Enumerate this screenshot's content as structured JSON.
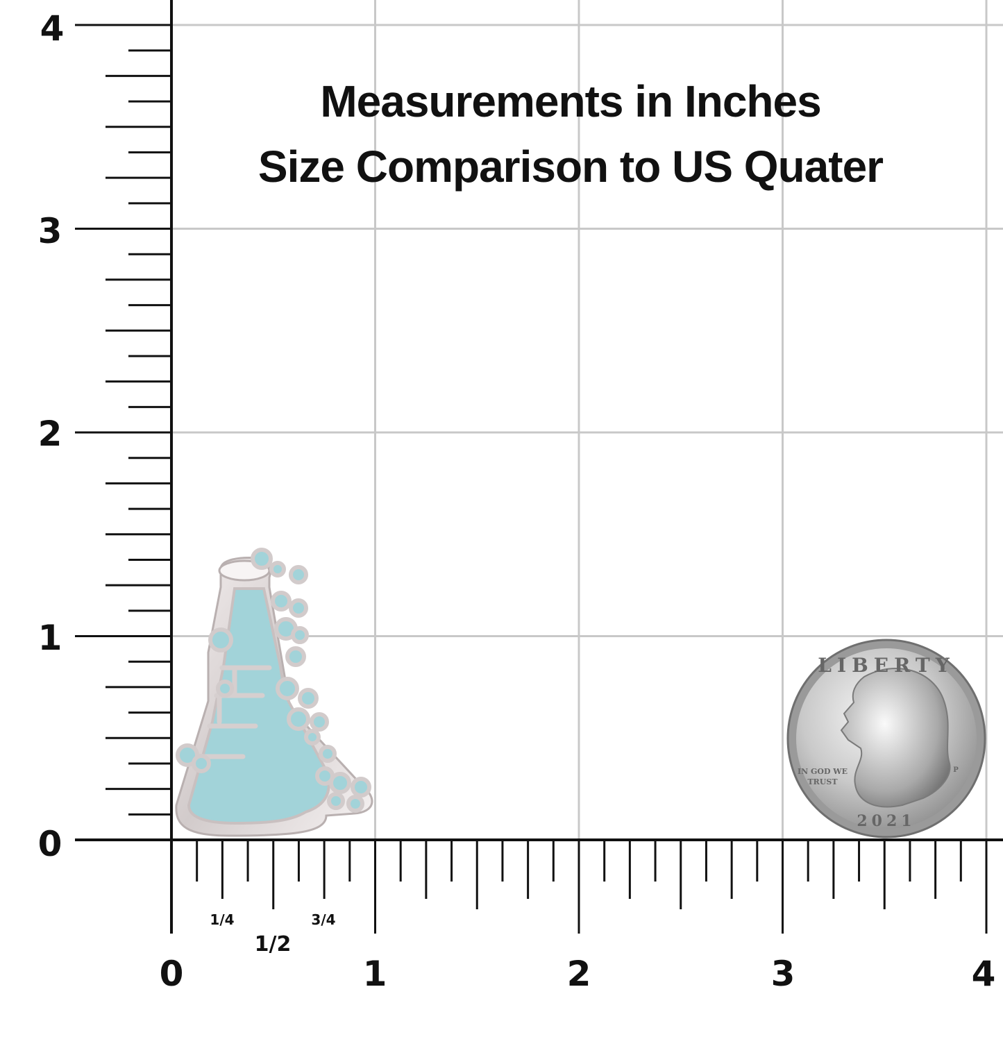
{
  "title": {
    "line1": "Measurements in Inches",
    "line2": "Size Comparison to US Quater"
  },
  "ruler": {
    "unit": "inches",
    "y_labels": [
      "0",
      "1",
      "2",
      "3",
      "4"
    ],
    "x_labels": [
      "0",
      "1",
      "2",
      "3",
      "4"
    ],
    "fraction_labels": [
      "1/4",
      "1/2",
      "3/4"
    ]
  },
  "pin": {
    "icon": "flask-pin-icon",
    "height_in": 1.4,
    "width_in": 1.0,
    "fill_color": "#a2d3d9",
    "metal_color": "#d9d3d3"
  },
  "coin": {
    "icon": "us-quarter-coin-icon",
    "diameter_in": 0.955,
    "text_top": "LIBERTY",
    "motto": [
      "IN GOD WE",
      "TRUST"
    ],
    "year": "2021",
    "mint_mark": "P"
  },
  "colors": {
    "grid": "#c8c8c8",
    "axis": "#111111"
  }
}
